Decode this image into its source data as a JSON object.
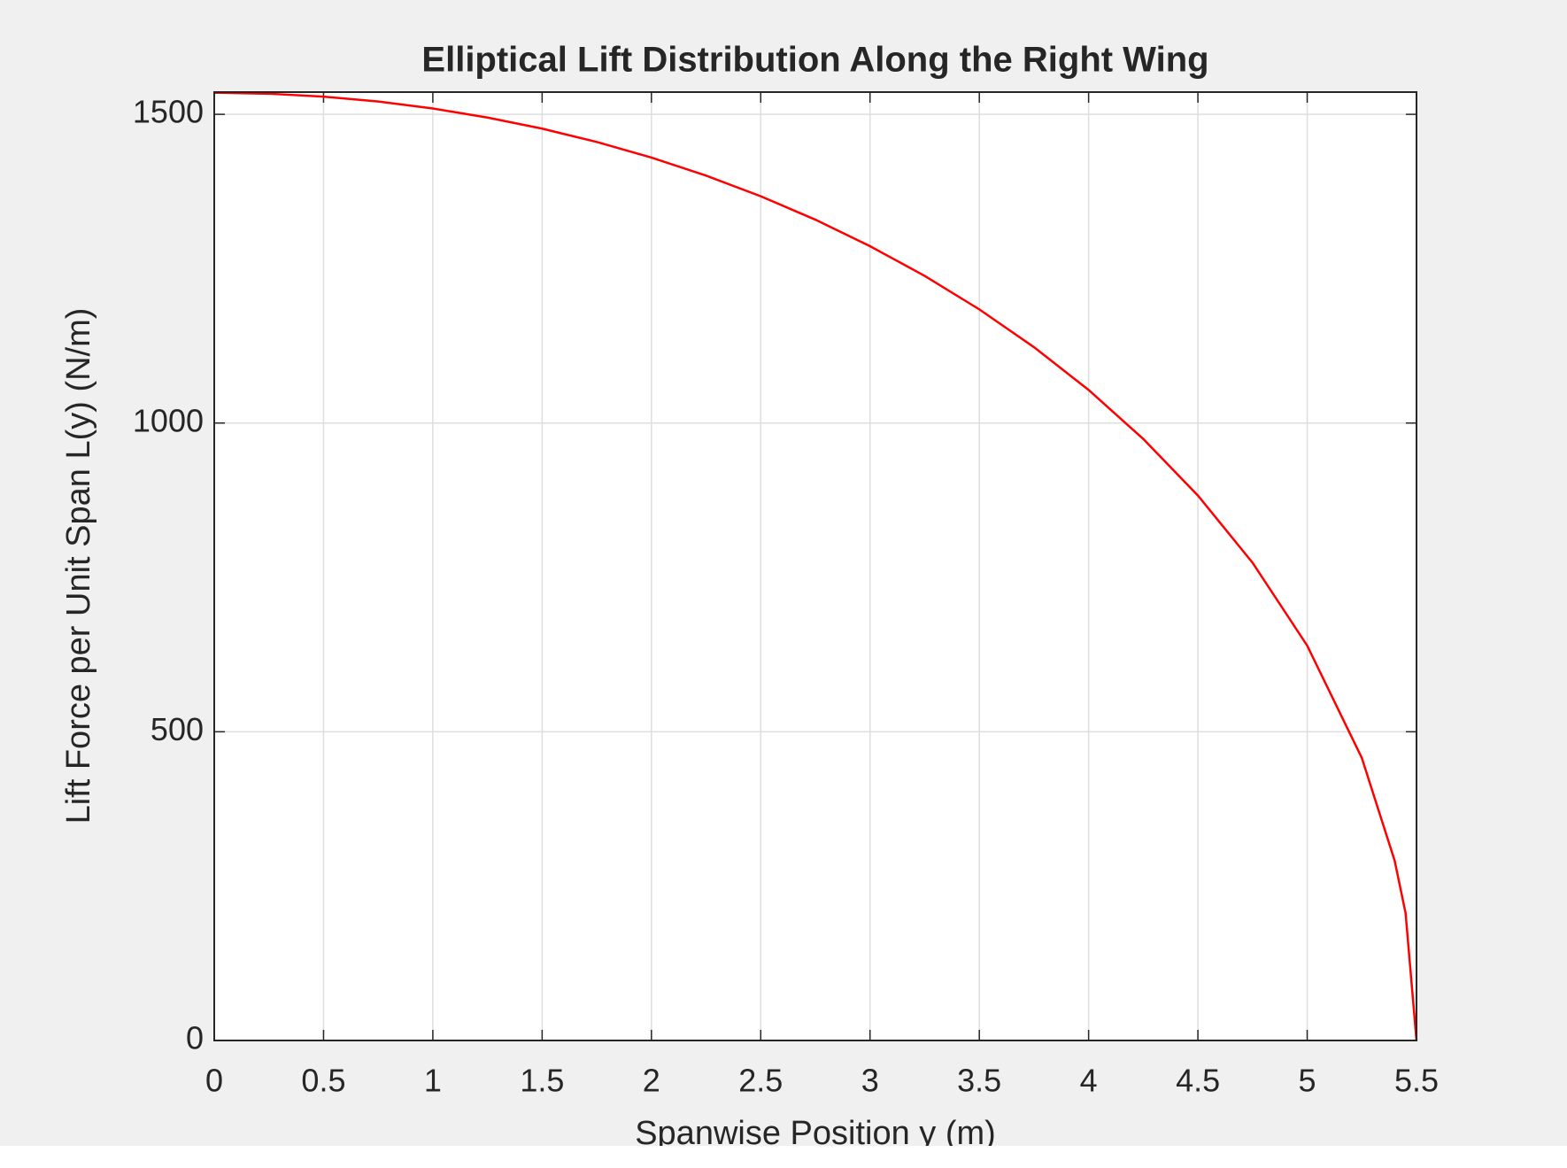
{
  "chart_data": {
    "type": "line",
    "title": "Elliptical Lift Distribution Along the Right Wing",
    "x_label": "Spanwise Position y (m)",
    "y_label": "Lift Force per Unit Span L(y) (N/m)",
    "x": [
      0,
      0.25,
      0.5,
      0.75,
      1,
      1.25,
      1.5,
      1.75,
      2,
      2.25,
      2.5,
      2.75,
      3,
      3.25,
      3.5,
      3.75,
      4,
      4.25,
      4.5,
      4.75,
      5,
      5.25,
      5.4,
      5.45,
      5.5
    ],
    "series": [
      {
        "name": "L(y)",
        "color": "#ff0000",
        "values": [
          1535,
          1533.4,
          1528.6,
          1520.7,
          1509.4,
          1494.8,
          1476.8,
          1455.2,
          1429.9,
          1400.7,
          1367.3,
          1329.4,
          1286.5,
          1238.3,
          1184.1,
          1122.9,
          1053.6,
          974.3,
          882.6,
          773.8,
          639.5,
          457.5,
          291.4,
          206.5,
          0
        ]
      }
    ],
    "xlim": [
      0,
      5.5
    ],
    "xticks": [
      0,
      0.5,
      1,
      1.5,
      2,
      2.5,
      3,
      3.5,
      4,
      4.5,
      5,
      5.5
    ],
    "ylim": [
      0,
      1536
    ],
    "yticks": [
      0,
      500,
      1000,
      1500
    ],
    "grid": true
  }
}
